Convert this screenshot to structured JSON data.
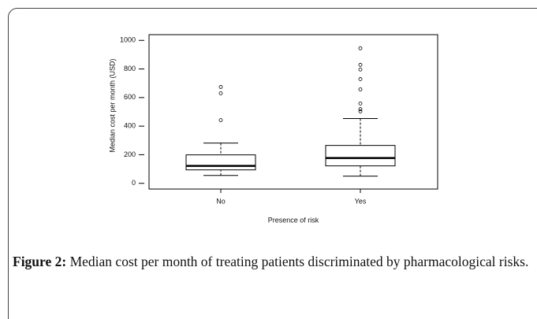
{
  "chart_data": {
    "type": "box",
    "xlabel": "Presence of risk",
    "ylabel": "Median cost per month (USD)",
    "categories": [
      "No",
      "Yes"
    ],
    "boxes": [
      {
        "whisker_low": 55,
        "q1": 94,
        "median": 122,
        "q3": 199,
        "whisker_high": 282,
        "outliers": [
          442,
          630,
          674
        ]
      },
      {
        "whisker_low": 50,
        "q1": 122,
        "median": 177,
        "q3": 265,
        "whisker_high": 453,
        "outliers": [
          503,
          519,
          558,
          657,
          729,
          796,
          829,
          945
        ]
      }
    ],
    "color": "#000000",
    "ylim": [
      -40,
      1040
    ],
    "yticks": [
      0,
      200,
      400,
      600,
      800,
      1000
    ]
  },
  "caption": {
    "label": "Figure 2:",
    "text": "Median cost per month of treating patients discriminated by pharmacological risks."
  }
}
